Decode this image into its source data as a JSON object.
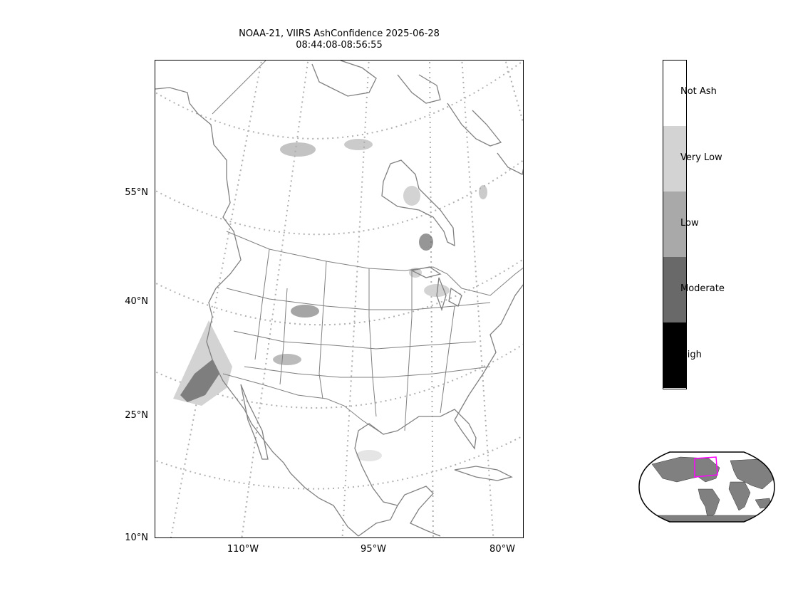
{
  "title": {
    "line1": "NOAA-21, VIIRS AshConfidence 2025-06-28",
    "line2": "08:44:08-08:56:55"
  },
  "map": {
    "lat_labels": [
      "55°N",
      "40°N",
      "25°N",
      "10°N"
    ],
    "lon_labels": [
      "110°W",
      "95°W",
      "80°W"
    ],
    "coastline_color": "#808080",
    "grid_color": "#b0b0b0"
  },
  "colorbar": {
    "categories": [
      {
        "label": "Not Ash",
        "color": "#ffffff"
      },
      {
        "label": "Very Low",
        "color": "#d3d3d3"
      },
      {
        "label": "Low",
        "color": "#a9a9a9"
      },
      {
        "label": "Moderate",
        "color": "#696969"
      },
      {
        "label": "High",
        "color": "#000000"
      }
    ]
  },
  "inset": {
    "land_color": "#808080",
    "extent_box_color": "#ff00ff"
  }
}
